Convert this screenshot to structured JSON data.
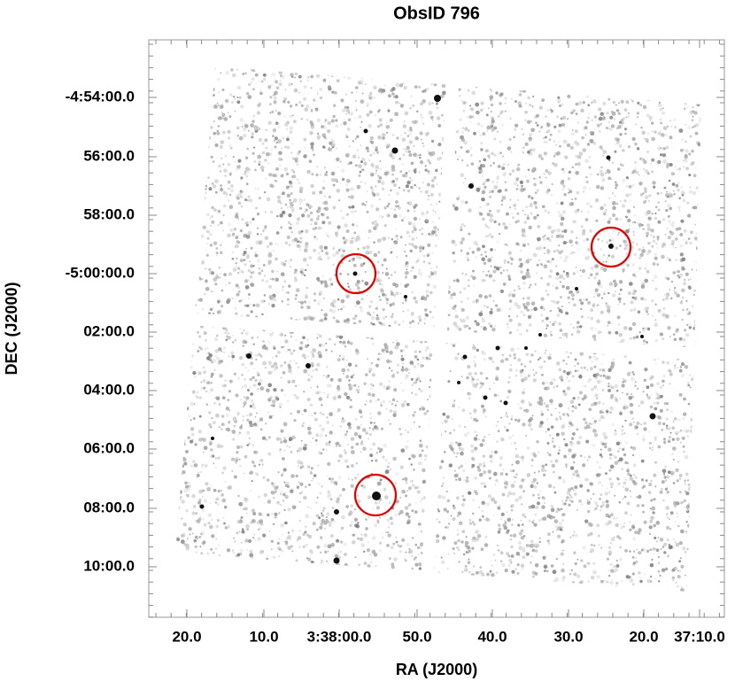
{
  "title": "ObsID 796",
  "x_axis": {
    "label": "RA (J2000)",
    "ticks": [
      "20.0",
      "10.0",
      "3:38:00.0",
      "50.0",
      "40.0",
      "30.0",
      "20.0",
      "37:10.0"
    ]
  },
  "y_axis": {
    "label": "DEC (J2000)",
    "ticks": [
      "-4:54:00.0",
      "56:00.0",
      "58:00.0",
      "-5:00:00.0",
      "02:00.0",
      "04:00.0",
      "06:00.0",
      "08:00.0",
      "10:00.0"
    ]
  }
}
